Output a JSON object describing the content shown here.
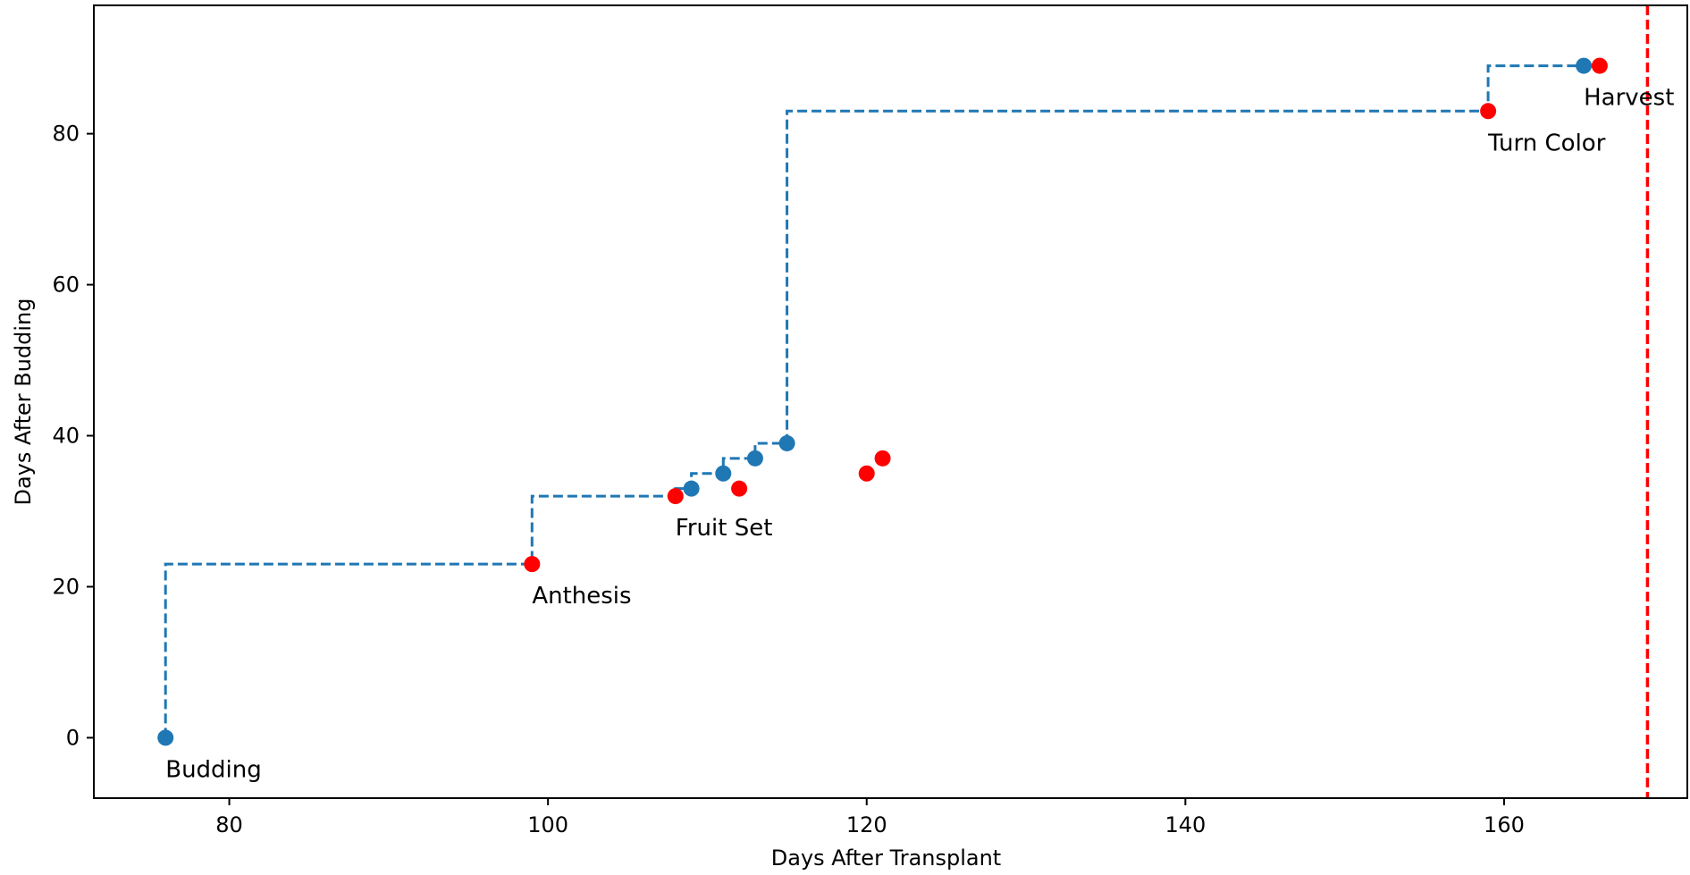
{
  "chart_data": {
    "type": "scatter",
    "title": "",
    "xlabel": "Days After Transplant",
    "ylabel": "Days After Budding",
    "xlim": [
      71.5,
      171.5
    ],
    "ylim": [
      -8,
      97
    ],
    "xticks": [
      80,
      100,
      120,
      140,
      160
    ],
    "yticks": [
      0,
      20,
      40,
      60,
      80
    ],
    "grid": false,
    "legend": "none",
    "step_line": {
      "color": "#1f77b4",
      "style": "dashed",
      "x": [
        76,
        76,
        99,
        99,
        108,
        109,
        111,
        111,
        113,
        115,
        115,
        159,
        159,
        165
      ],
      "y": [
        0,
        23,
        23,
        32,
        32,
        33,
        35,
        35,
        37,
        39,
        39,
        83,
        83,
        89
      ],
      "draw_style": "vertical-then-horizontal"
    },
    "series": [
      {
        "color": "#1f77b4",
        "x": [
          76,
          109,
          111,
          113,
          115,
          165
        ],
        "y": [
          0,
          33,
          35,
          37,
          39,
          89
        ]
      },
      {
        "color": "#ff0000",
        "x": [
          99,
          108,
          112,
          120,
          121,
          159,
          166
        ],
        "y": [
          23,
          32,
          33,
          35,
          37,
          83,
          89
        ]
      }
    ],
    "annotations": [
      {
        "text": "Budding",
        "x": 76,
        "y": 0
      },
      {
        "text": "Anthesis",
        "x": 99,
        "y": 23
      },
      {
        "text": "Fruit Set",
        "x": 108,
        "y": 32
      },
      {
        "text": "Turn Color",
        "x": 159,
        "y": 83
      },
      {
        "text": "Harvest",
        "x": 165,
        "y": 89
      }
    ],
    "reference_line": {
      "orientation": "vertical",
      "x": 169,
      "color": "#ff0000",
      "style": "dashed"
    }
  }
}
